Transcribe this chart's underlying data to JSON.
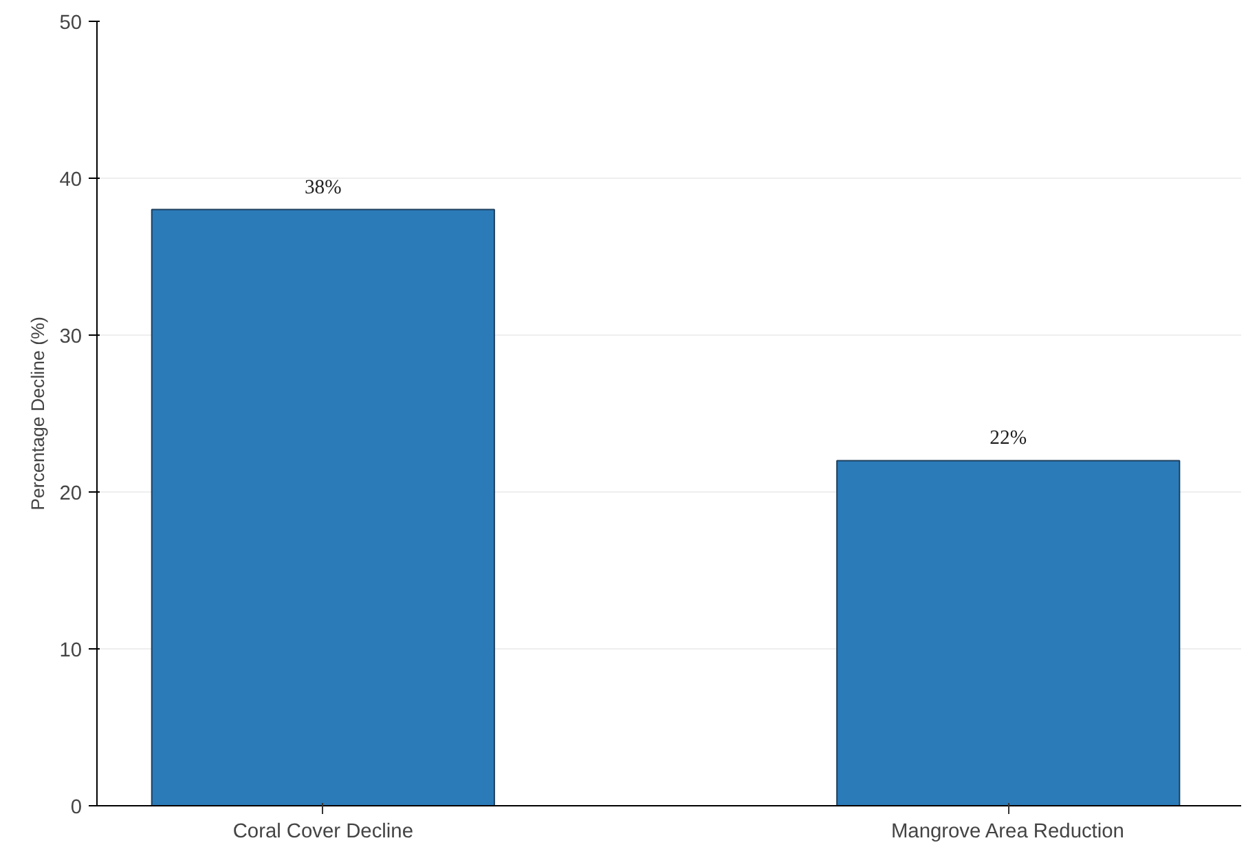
{
  "chart_data": {
    "type": "bar",
    "ylabel": "Percentage Decline (%)",
    "categories": [
      "Coral Cover Decline",
      "Mangrove Area Reduction"
    ],
    "values": [
      38,
      22
    ],
    "color": "#2b7bb9",
    "value_labels": [
      "38%",
      "22%"
    ],
    "ylim": [
      0,
      50
    ],
    "yticks": [
      0,
      10,
      20,
      30,
      40,
      50
    ],
    "grid": "y"
  }
}
